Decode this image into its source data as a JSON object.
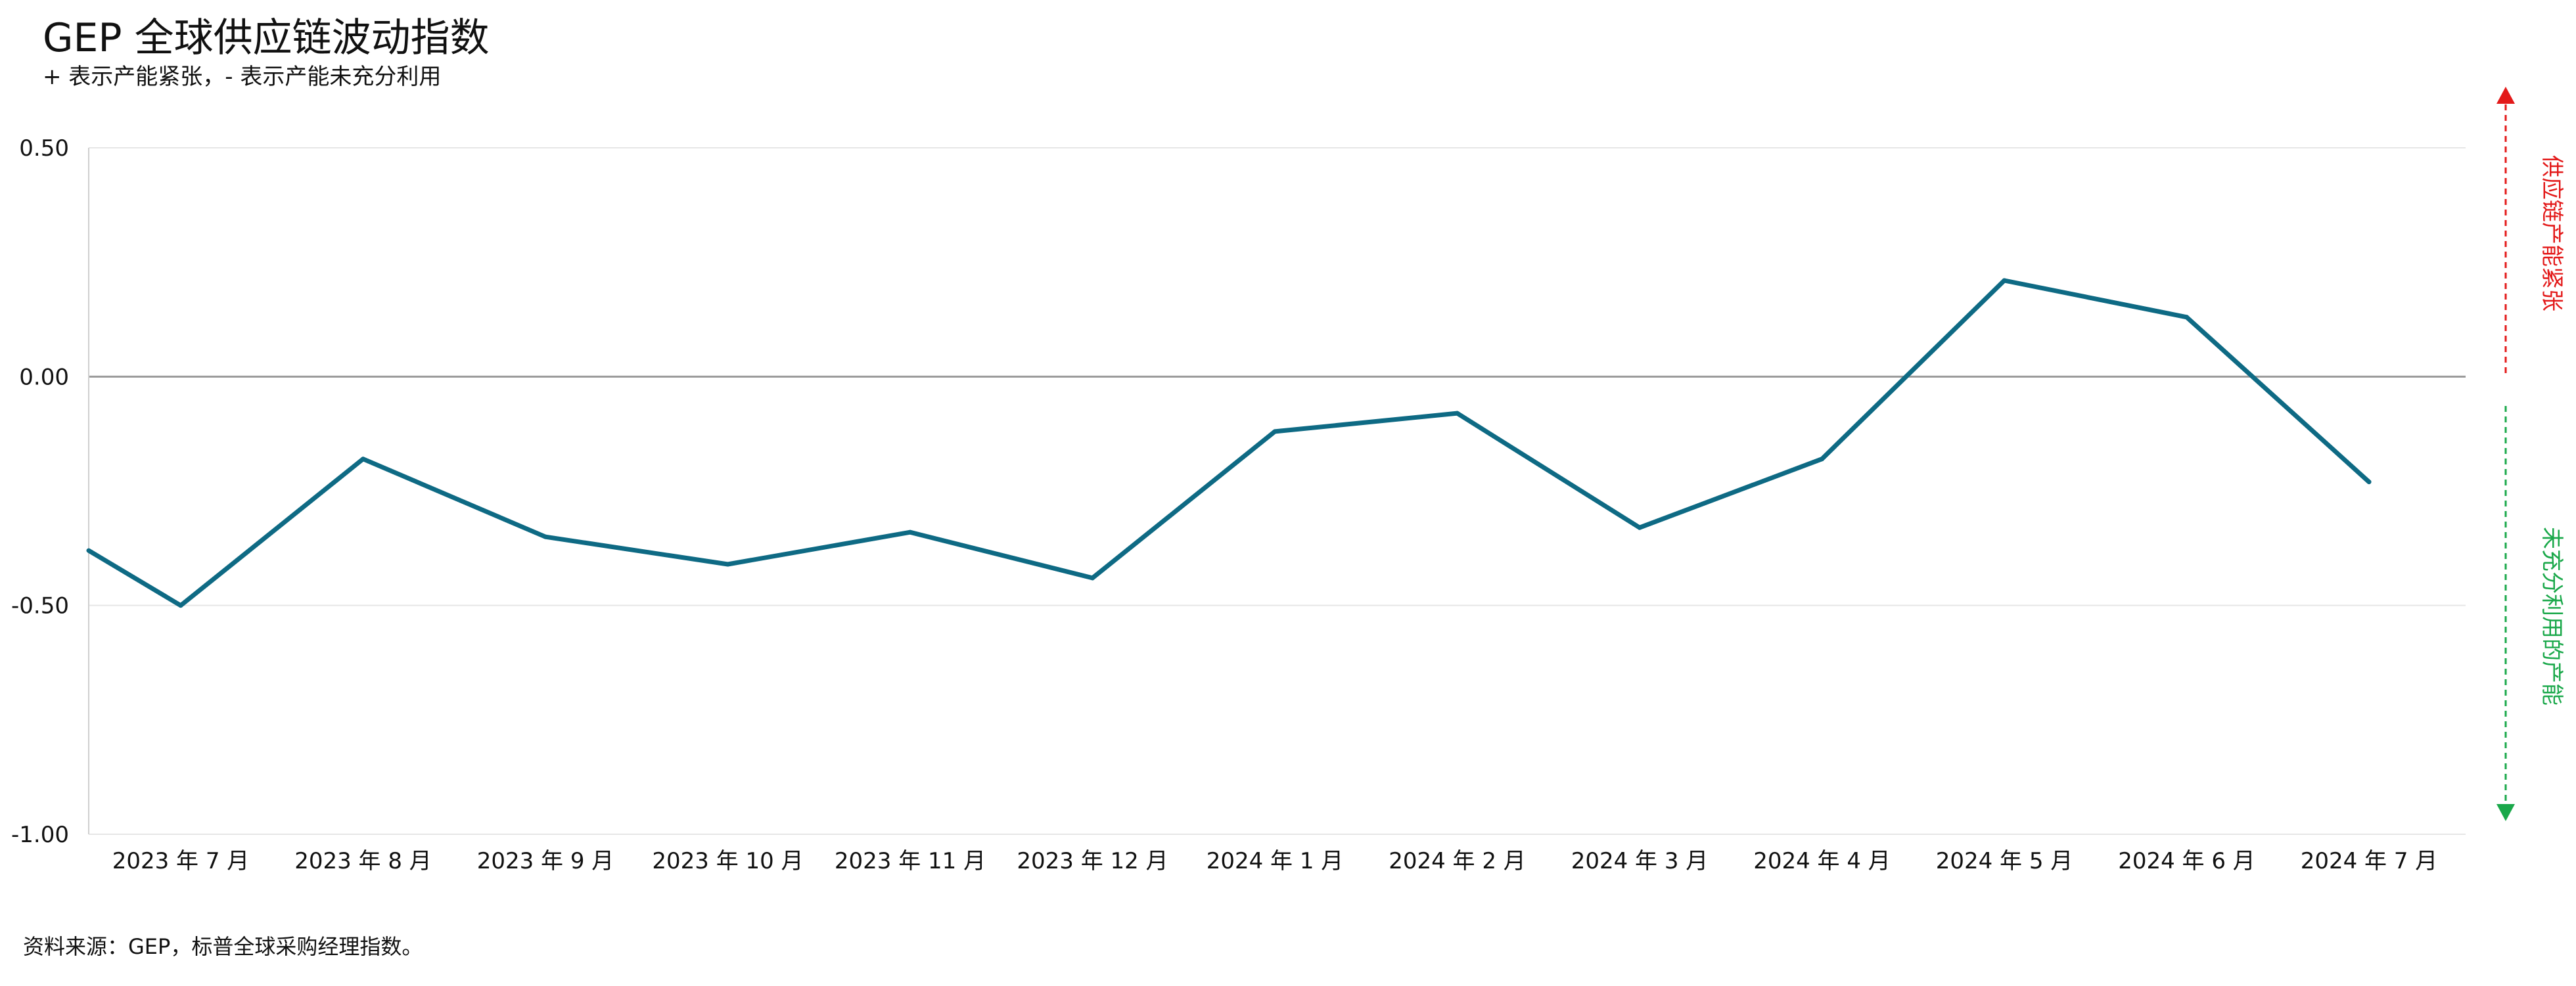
{
  "title": "GEP 全球供应链波动指数",
  "subtitle": "+ 表示产能紧张，- 表示产能未充分利用",
  "source": "资料来源：GEP，标普全球采购经理指数。",
  "colors": {
    "line": "#0e6a84",
    "zero_line": "#9a9a9a",
    "grid": "#e6e6e6",
    "up_arrow": "#e31919",
    "down_arrow": "#1aa84a",
    "text": "#111111"
  },
  "side_labels": {
    "up": "供应链产能紧张",
    "down": "未充分利用的产能"
  },
  "chart_data": {
    "type": "line",
    "title": "GEP 全球供应链波动指数",
    "subtitle": "+ 表示产能紧张，- 表示产能未充分利用",
    "xlabel": "",
    "ylabel": "",
    "ylim": [
      -1.0,
      0.5
    ],
    "yticks": [
      0.5,
      0.0,
      -0.5,
      -1.0
    ],
    "ytick_labels": [
      "0.50",
      "0.00",
      "-0.50",
      "-1.00"
    ],
    "grid": true,
    "legend": "none",
    "x_start_value": -0.38,
    "categories": [
      "2023 年 7 月",
      "2023 年 8 月",
      "2023 年 9 月",
      "2023 年 10 月",
      "2023 年 11 月",
      "2023 年 12 月",
      "2024 年 1 月",
      "2024 年 2 月",
      "2024 年 3 月",
      "2024 年 4 月",
      "2024 年 5 月",
      "2024 年 6 月",
      "2024 年 7 月"
    ],
    "series": [
      {
        "values": [
          -0.5,
          -0.18,
          -0.35,
          -0.41,
          -0.34,
          -0.44,
          -0.12,
          -0.08,
          -0.33,
          -0.18,
          0.21,
          0.13,
          -0.23
        ]
      }
    ]
  }
}
